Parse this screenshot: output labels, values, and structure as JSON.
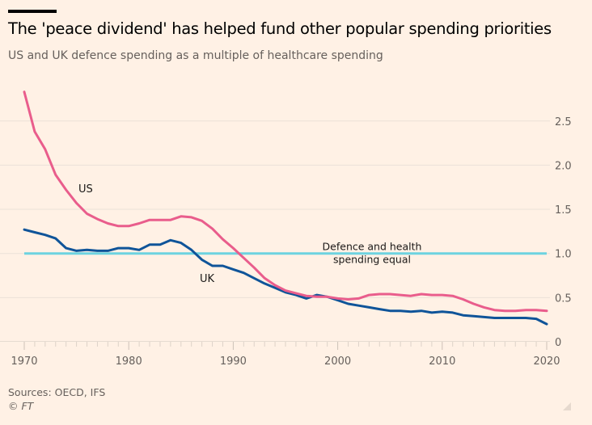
{
  "header": {
    "title": "The 'peace dividend' has helped fund other popular spending priorities",
    "subtitle": "US and UK defence spending as a multiple of healthcare spending"
  },
  "footer": {
    "sources": "Sources: OECD, IFS",
    "copyright": "© FT"
  },
  "chart_data": {
    "type": "line",
    "title": "The 'peace dividend' has helped fund other popular spending priorities",
    "subtitle": "US and UK defence spending as a multiple of healthcare spending",
    "xlabel": "",
    "ylabel": "",
    "xlim": [
      1970,
      2020
    ],
    "ylim": [
      0,
      2.8
    ],
    "grid": true,
    "x_ticks": [
      "1970",
      "1980",
      "1990",
      "2000",
      "2010",
      "2020"
    ],
    "y_ticks": [
      "0",
      "0.5",
      "1.0",
      "1.5",
      "2.0",
      "2.5"
    ],
    "y_axis_side": "right",
    "x": [
      1970,
      1971,
      1972,
      1973,
      1974,
      1975,
      1976,
      1977,
      1978,
      1979,
      1980,
      1981,
      1982,
      1983,
      1984,
      1985,
      1986,
      1987,
      1988,
      1989,
      1990,
      1991,
      1992,
      1993,
      1994,
      1995,
      1996,
      1997,
      1998,
      1999,
      2000,
      2001,
      2002,
      2003,
      2004,
      2005,
      2006,
      2007,
      2008,
      2009,
      2010,
      2011,
      2012,
      2013,
      2014,
      2015,
      2016,
      2017,
      2018,
      2019,
      2020
    ],
    "series": [
      {
        "name": "US",
        "color": "#e95d8c",
        "values": [
          2.83,
          2.38,
          2.18,
          1.89,
          1.72,
          1.57,
          1.45,
          1.39,
          1.34,
          1.31,
          1.31,
          1.34,
          1.38,
          1.38,
          1.38,
          1.42,
          1.41,
          1.37,
          1.28,
          1.16,
          1.06,
          0.95,
          0.84,
          0.72,
          0.64,
          0.58,
          0.55,
          0.52,
          0.51,
          0.51,
          0.49,
          0.48,
          0.49,
          0.53,
          0.54,
          0.54,
          0.53,
          0.52,
          0.54,
          0.53,
          0.53,
          0.52,
          0.48,
          0.43,
          0.39,
          0.36,
          0.35,
          0.35,
          0.36,
          0.36,
          0.35
        ]
      },
      {
        "name": "UK",
        "color": "#0f5499",
        "values": [
          1.27,
          1.24,
          1.21,
          1.17,
          1.06,
          1.03,
          1.04,
          1.03,
          1.03,
          1.06,
          1.06,
          1.04,
          1.1,
          1.1,
          1.15,
          1.12,
          1.04,
          0.93,
          0.86,
          0.86,
          0.82,
          0.78,
          0.72,
          0.66,
          0.61,
          0.56,
          0.53,
          0.49,
          0.53,
          0.51,
          0.47,
          0.43,
          0.41,
          0.39,
          0.37,
          0.35,
          0.35,
          0.34,
          0.35,
          0.33,
          0.34,
          0.33,
          0.3,
          0.29,
          0.28,
          0.27,
          0.27,
          0.27,
          0.27,
          0.26,
          0.2
        ]
      }
    ],
    "reference_line": {
      "value": 1.0,
      "color": "#6dd3e0",
      "label": "Defence and health spending equal",
      "label_lines": [
        "Defence and health",
        "spending equal"
      ]
    },
    "annotations": [
      {
        "text": "US",
        "series": "US"
      },
      {
        "text": "UK",
        "series": "UK"
      }
    ]
  }
}
